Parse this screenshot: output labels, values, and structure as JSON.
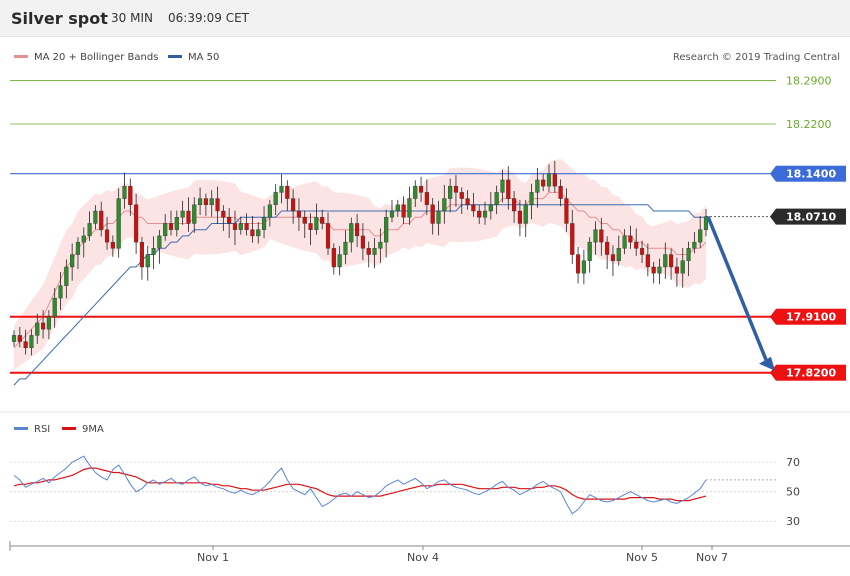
{
  "header": {
    "instrument": "Silver spot",
    "timeframe": "30 MIN",
    "time": "06:39:09 CET"
  },
  "legend": {
    "ma20_label": "MA 20 + Bollinger Bands",
    "ma50_label": "MA 50",
    "credit": "Research © 2019 Trading Central"
  },
  "rsi_legend": {
    "rsi_label": "RSI",
    "ma9_label": "9MA"
  },
  "colors": {
    "up": "#2e8b2e",
    "down": "#cc1111",
    "ma20": "#e88f8f",
    "ma50": "#3a6bb5",
    "band": "#fde4e4",
    "support": "#ee1111",
    "resistance": "#3a6bd8",
    "target": "#6aab2c",
    "arrow": "#2f5fa5",
    "rsi": "#5b84d6",
    "rsi_ma": "#dd1111"
  },
  "chart_data": [
    {
      "type": "candlestick",
      "title": "Silver spot",
      "ylim": [
        17.76,
        18.31
      ],
      "x_ticks": [
        "Nov 1",
        "Nov 4",
        "Nov 5",
        "Nov 7"
      ],
      "levels": [
        {
          "value": 18.29,
          "label": "18.2900",
          "kind": "target"
        },
        {
          "value": 18.22,
          "label": "18.2200",
          "kind": "target"
        },
        {
          "value": 18.14,
          "label": "18.1400",
          "kind": "resistance"
        },
        {
          "value": 18.071,
          "label": "18.0710",
          "kind": "last"
        },
        {
          "value": 17.91,
          "label": "17.9100",
          "kind": "support"
        },
        {
          "value": 17.82,
          "label": "17.8200",
          "kind": "support"
        }
      ],
      "closes": [
        17.88,
        17.87,
        17.86,
        17.88,
        17.9,
        17.89,
        17.91,
        17.94,
        17.96,
        17.99,
        18.01,
        18.03,
        18.04,
        18.06,
        18.08,
        18.05,
        18.03,
        18.02,
        18.1,
        18.12,
        18.09,
        18.03,
        17.99,
        18.01,
        18.02,
        18.04,
        18.06,
        18.05,
        18.07,
        18.08,
        18.06,
        18.09,
        18.1,
        18.09,
        18.1,
        18.08,
        18.07,
        18.06,
        18.05,
        18.06,
        18.05,
        18.04,
        18.05,
        18.07,
        18.09,
        18.11,
        18.12,
        18.1,
        18.08,
        18.07,
        18.06,
        18.05,
        18.07,
        18.06,
        18.02,
        17.99,
        18.01,
        18.03,
        18.06,
        18.04,
        18.02,
        18.01,
        18.02,
        18.03,
        18.07,
        18.08,
        18.09,
        18.07,
        18.1,
        18.12,
        18.11,
        18.09,
        18.06,
        18.08,
        18.1,
        18.12,
        18.11,
        18.1,
        18.09,
        18.08,
        18.07,
        18.08,
        18.09,
        18.11,
        18.13,
        18.1,
        18.08,
        18.06,
        18.09,
        18.11,
        18.13,
        18.12,
        18.14,
        18.12,
        18.1,
        18.06,
        18.01,
        17.98,
        18.0,
        18.03,
        18.05,
        18.03,
        18.01,
        18.0,
        18.02,
        18.04,
        18.03,
        18.02,
        18.01,
        17.99,
        17.98,
        17.99,
        18.01,
        17.99,
        17.98,
        18.0,
        18.02,
        18.03,
        18.05,
        18.071
      ],
      "ma20": [
        17.86,
        17.87,
        17.88,
        17.89,
        17.9,
        17.91,
        17.93,
        17.95,
        17.97,
        17.99,
        18.0,
        18.02,
        18.03,
        18.04,
        18.05,
        18.05,
        18.06,
        18.06,
        18.07,
        18.08,
        18.08,
        18.07,
        18.07,
        18.06,
        18.06,
        18.06,
        18.06,
        18.06,
        18.06,
        18.06,
        18.06,
        18.07,
        18.07,
        18.07,
        18.07,
        18.07,
        18.07,
        18.07,
        18.07,
        18.06,
        18.06,
        18.06,
        18.06,
        18.06,
        18.07,
        18.07,
        18.07,
        18.07,
        18.07,
        18.07,
        18.07,
        18.07,
        18.07,
        18.06,
        18.06,
        18.05,
        18.05,
        18.05,
        18.05,
        18.05,
        18.05,
        18.05,
        18.04,
        18.04,
        18.05,
        18.05,
        18.05,
        18.06,
        18.06,
        18.07,
        18.07,
        18.08,
        18.08,
        18.08,
        18.08,
        18.09,
        18.09,
        18.09,
        18.09,
        18.09,
        18.09,
        18.09,
        18.09,
        18.09,
        18.1,
        18.1,
        18.1,
        18.09,
        18.09,
        18.1,
        18.1,
        18.1,
        18.11,
        18.11,
        18.11,
        18.1,
        18.09,
        18.08,
        18.08,
        18.07,
        18.07,
        18.06,
        18.06,
        18.05,
        18.05,
        18.04,
        18.04,
        18.03,
        18.03,
        18.02,
        18.02,
        18.02,
        18.02,
        18.02,
        18.01,
        18.01,
        18.01,
        18.02,
        18.02,
        18.03
      ],
      "ma50": [
        17.8,
        17.81,
        17.81,
        17.82,
        17.83,
        17.84,
        17.85,
        17.86,
        17.87,
        17.88,
        17.89,
        17.9,
        17.91,
        17.92,
        17.93,
        17.94,
        17.95,
        17.96,
        17.97,
        17.98,
        17.99,
        17.99,
        18.0,
        18.01,
        18.01,
        18.02,
        18.02,
        18.03,
        18.03,
        18.04,
        18.04,
        18.05,
        18.05,
        18.05,
        18.06,
        18.06,
        18.06,
        18.06,
        18.06,
        18.07,
        18.07,
        18.07,
        18.07,
        18.07,
        18.07,
        18.07,
        18.08,
        18.08,
        18.08,
        18.08,
        18.08,
        18.08,
        18.08,
        18.08,
        18.08,
        18.08,
        18.08,
        18.08,
        18.08,
        18.08,
        18.08,
        18.08,
        18.08,
        18.08,
        18.08,
        18.08,
        18.08,
        18.08,
        18.08,
        18.08,
        18.08,
        18.08,
        18.08,
        18.08,
        18.08,
        18.08,
        18.08,
        18.09,
        18.09,
        18.09,
        18.09,
        18.09,
        18.09,
        18.09,
        18.09,
        18.09,
        18.09,
        18.09,
        18.09,
        18.09,
        18.09,
        18.09,
        18.09,
        18.09,
        18.09,
        18.09,
        18.09,
        18.09,
        18.09,
        18.09,
        18.09,
        18.09,
        18.09,
        18.09,
        18.09,
        18.09,
        18.09,
        18.09,
        18.09,
        18.09,
        18.08,
        18.08,
        18.08,
        18.08,
        18.08,
        18.08,
        18.08,
        18.07,
        18.07,
        18.07
      ],
      "projection": {
        "from": 18.071,
        "to": 17.82
      }
    },
    {
      "type": "line",
      "title": "RSI",
      "ylim": [
        20,
        85
      ],
      "y_ticks": [
        30,
        50,
        70
      ],
      "series": [
        {
          "name": "RSI",
          "values": [
            61,
            58,
            53,
            55,
            57,
            59,
            56,
            60,
            63,
            66,
            70,
            72,
            74,
            68,
            63,
            60,
            58,
            65,
            68,
            62,
            55,
            50,
            52,
            56,
            58,
            55,
            57,
            59,
            56,
            55,
            58,
            60,
            56,
            54,
            55,
            53,
            52,
            50,
            49,
            51,
            49,
            48,
            50,
            53,
            57,
            62,
            66,
            58,
            52,
            50,
            48,
            52,
            46,
            40,
            42,
            45,
            48,
            49,
            47,
            50,
            48,
            46,
            47,
            50,
            54,
            56,
            58,
            55,
            57,
            59,
            56,
            52,
            54,
            57,
            58,
            55,
            53,
            52,
            51,
            49,
            48,
            50,
            52,
            55,
            57,
            53,
            51,
            48,
            50,
            52,
            55,
            57,
            54,
            52,
            50,
            42,
            35,
            38,
            43,
            48,
            46,
            44,
            43,
            44,
            46,
            48,
            50,
            48,
            46,
            44,
            43,
            44,
            45,
            43,
            42,
            44,
            46,
            49,
            52,
            58
          ]
        },
        {
          "name": "9MA",
          "values": [
            54,
            55,
            55,
            56,
            56,
            57,
            58,
            58,
            59,
            60,
            61,
            63,
            65,
            66,
            66,
            65,
            64,
            63,
            63,
            62,
            61,
            60,
            58,
            56,
            56,
            56,
            56,
            56,
            56,
            56,
            56,
            56,
            56,
            56,
            55,
            55,
            54,
            54,
            53,
            52,
            52,
            51,
            51,
            51,
            52,
            53,
            54,
            55,
            55,
            55,
            54,
            53,
            52,
            50,
            48,
            47,
            47,
            47,
            47,
            47,
            47,
            47,
            47,
            47,
            48,
            49,
            50,
            51,
            52,
            53,
            54,
            54,
            54,
            55,
            55,
            55,
            55,
            55,
            54,
            53,
            52,
            52,
            52,
            52,
            53,
            53,
            53,
            52,
            52,
            52,
            53,
            53,
            54,
            54,
            53,
            51,
            48,
            46,
            45,
            45,
            45,
            45,
            45,
            45,
            45,
            45,
            46,
            46,
            46,
            46,
            46,
            45,
            45,
            45,
            44,
            44,
            44,
            45,
            46,
            47
          ]
        }
      ]
    }
  ]
}
